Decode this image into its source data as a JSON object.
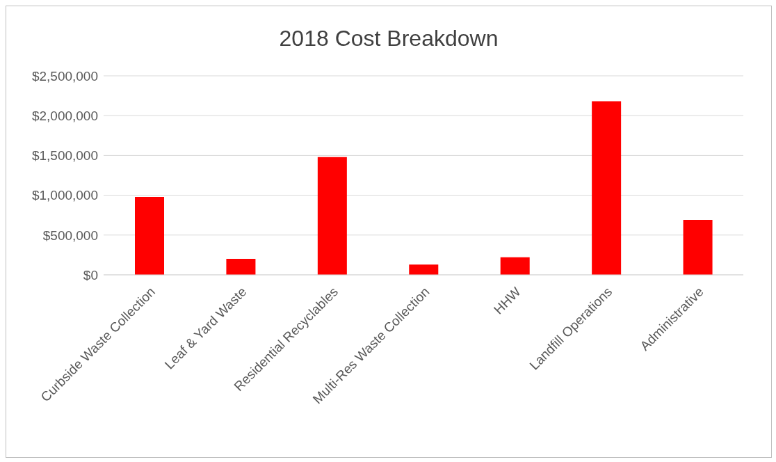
{
  "chart_data": {
    "type": "bar",
    "title": "2018 Cost Breakdown",
    "categories": [
      "Curbside Waste Collection",
      "Leaf & Yard Waste",
      "Residential Recyclables",
      "Multi-Res Waste Collection",
      "HHW",
      "Landfill Operations",
      "Administrative"
    ],
    "values": [
      980000,
      200000,
      1480000,
      130000,
      220000,
      2180000,
      690000
    ],
    "color": "#ff0000",
    "ylim": [
      0,
      2500000
    ],
    "yticks": [
      {
        "value": 0,
        "label": "$0"
      },
      {
        "value": 500000,
        "label": "$500,000"
      },
      {
        "value": 1000000,
        "label": "$1,000,000"
      },
      {
        "value": 1500000,
        "label": "$1,500,000"
      },
      {
        "value": 2000000,
        "label": "$2,000,000"
      },
      {
        "value": 2500000,
        "label": "$2,500,000"
      }
    ],
    "grid": "y"
  }
}
